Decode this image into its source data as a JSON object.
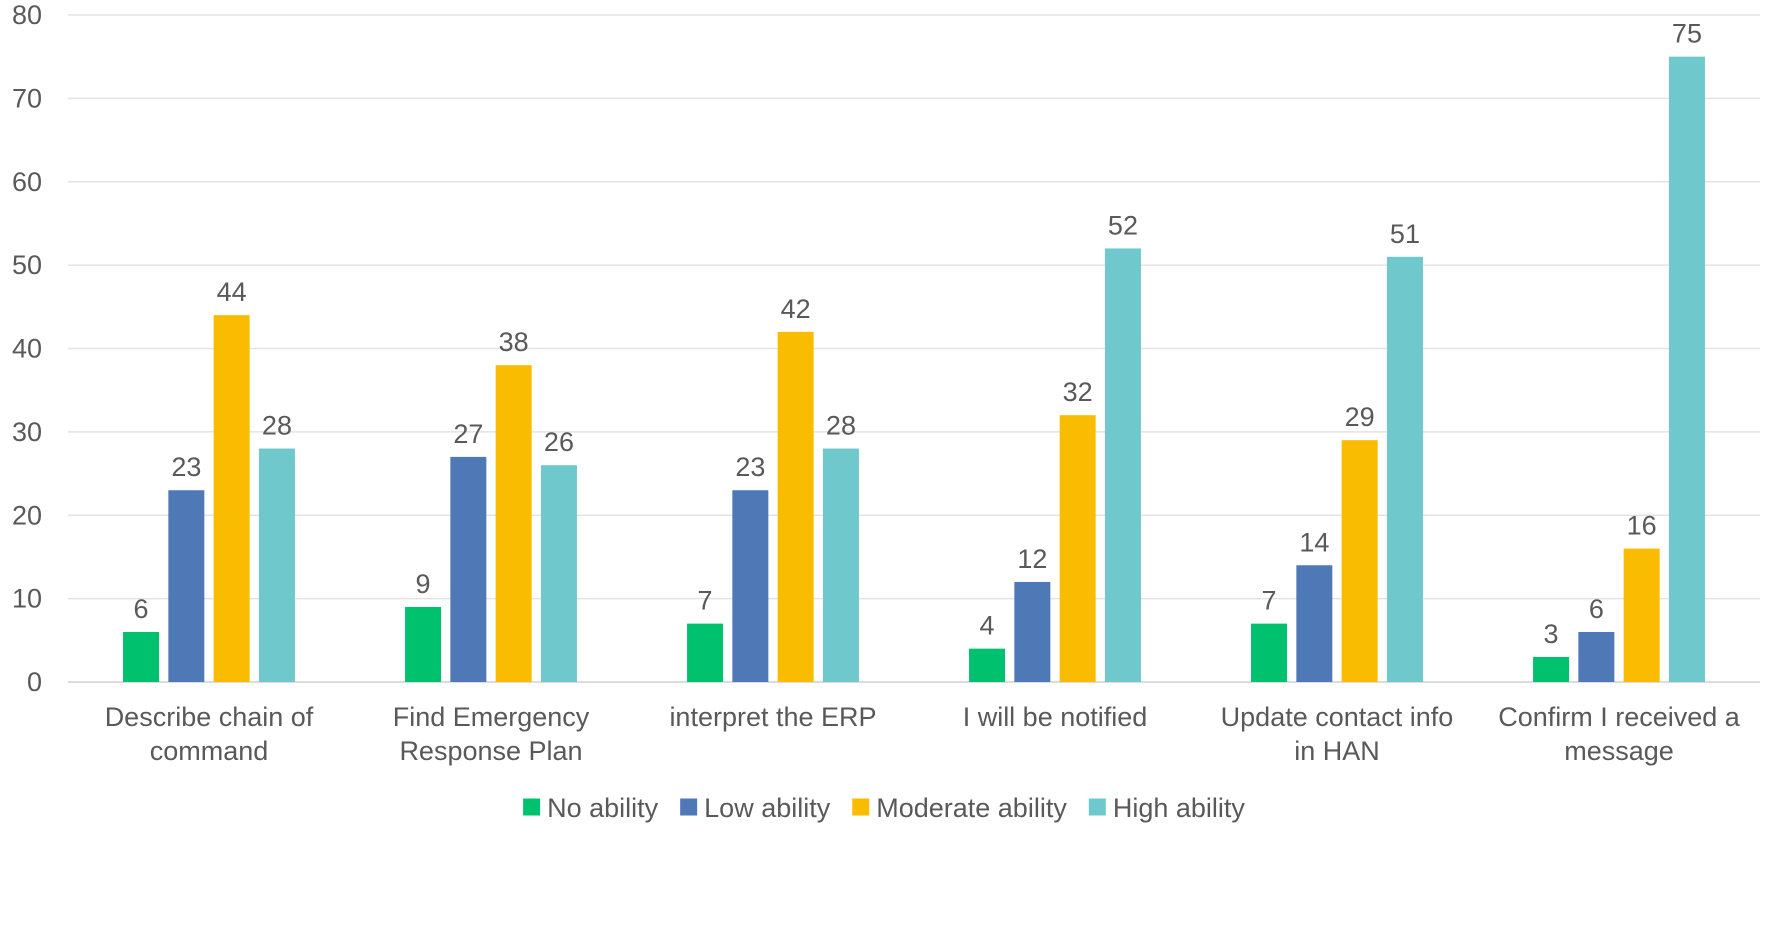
{
  "chart_data": {
    "type": "bar",
    "categories": [
      [
        "Describe chain of",
        "command"
      ],
      [
        "Find Emergency",
        "Response Plan"
      ],
      [
        "interpret the ERP"
      ],
      [
        "I will be notified"
      ],
      [
        "Update contact info",
        "in HAN"
      ],
      [
        "Confirm I received a",
        "message"
      ]
    ],
    "series": [
      {
        "name": "No ability",
        "color": "#00c16e",
        "values": [
          6,
          9,
          7,
          4,
          7,
          3
        ]
      },
      {
        "name": "Low ability",
        "color": "#4e79b6",
        "values": [
          23,
          27,
          23,
          12,
          14,
          6
        ]
      },
      {
        "name": "Moderate ability",
        "color": "#f9bc00",
        "values": [
          44,
          38,
          42,
          32,
          29,
          16
        ]
      },
      {
        "name": "High ability",
        "color": "#6ec8cc",
        "values": [
          28,
          26,
          28,
          52,
          51,
          75
        ]
      }
    ],
    "ylim": [
      0,
      80
    ],
    "yticks": [
      0,
      10,
      20,
      30,
      40,
      50,
      60,
      70,
      80
    ],
    "grid": true,
    "legend": "bottom",
    "title": "",
    "xlabel": "",
    "ylabel": ""
  }
}
